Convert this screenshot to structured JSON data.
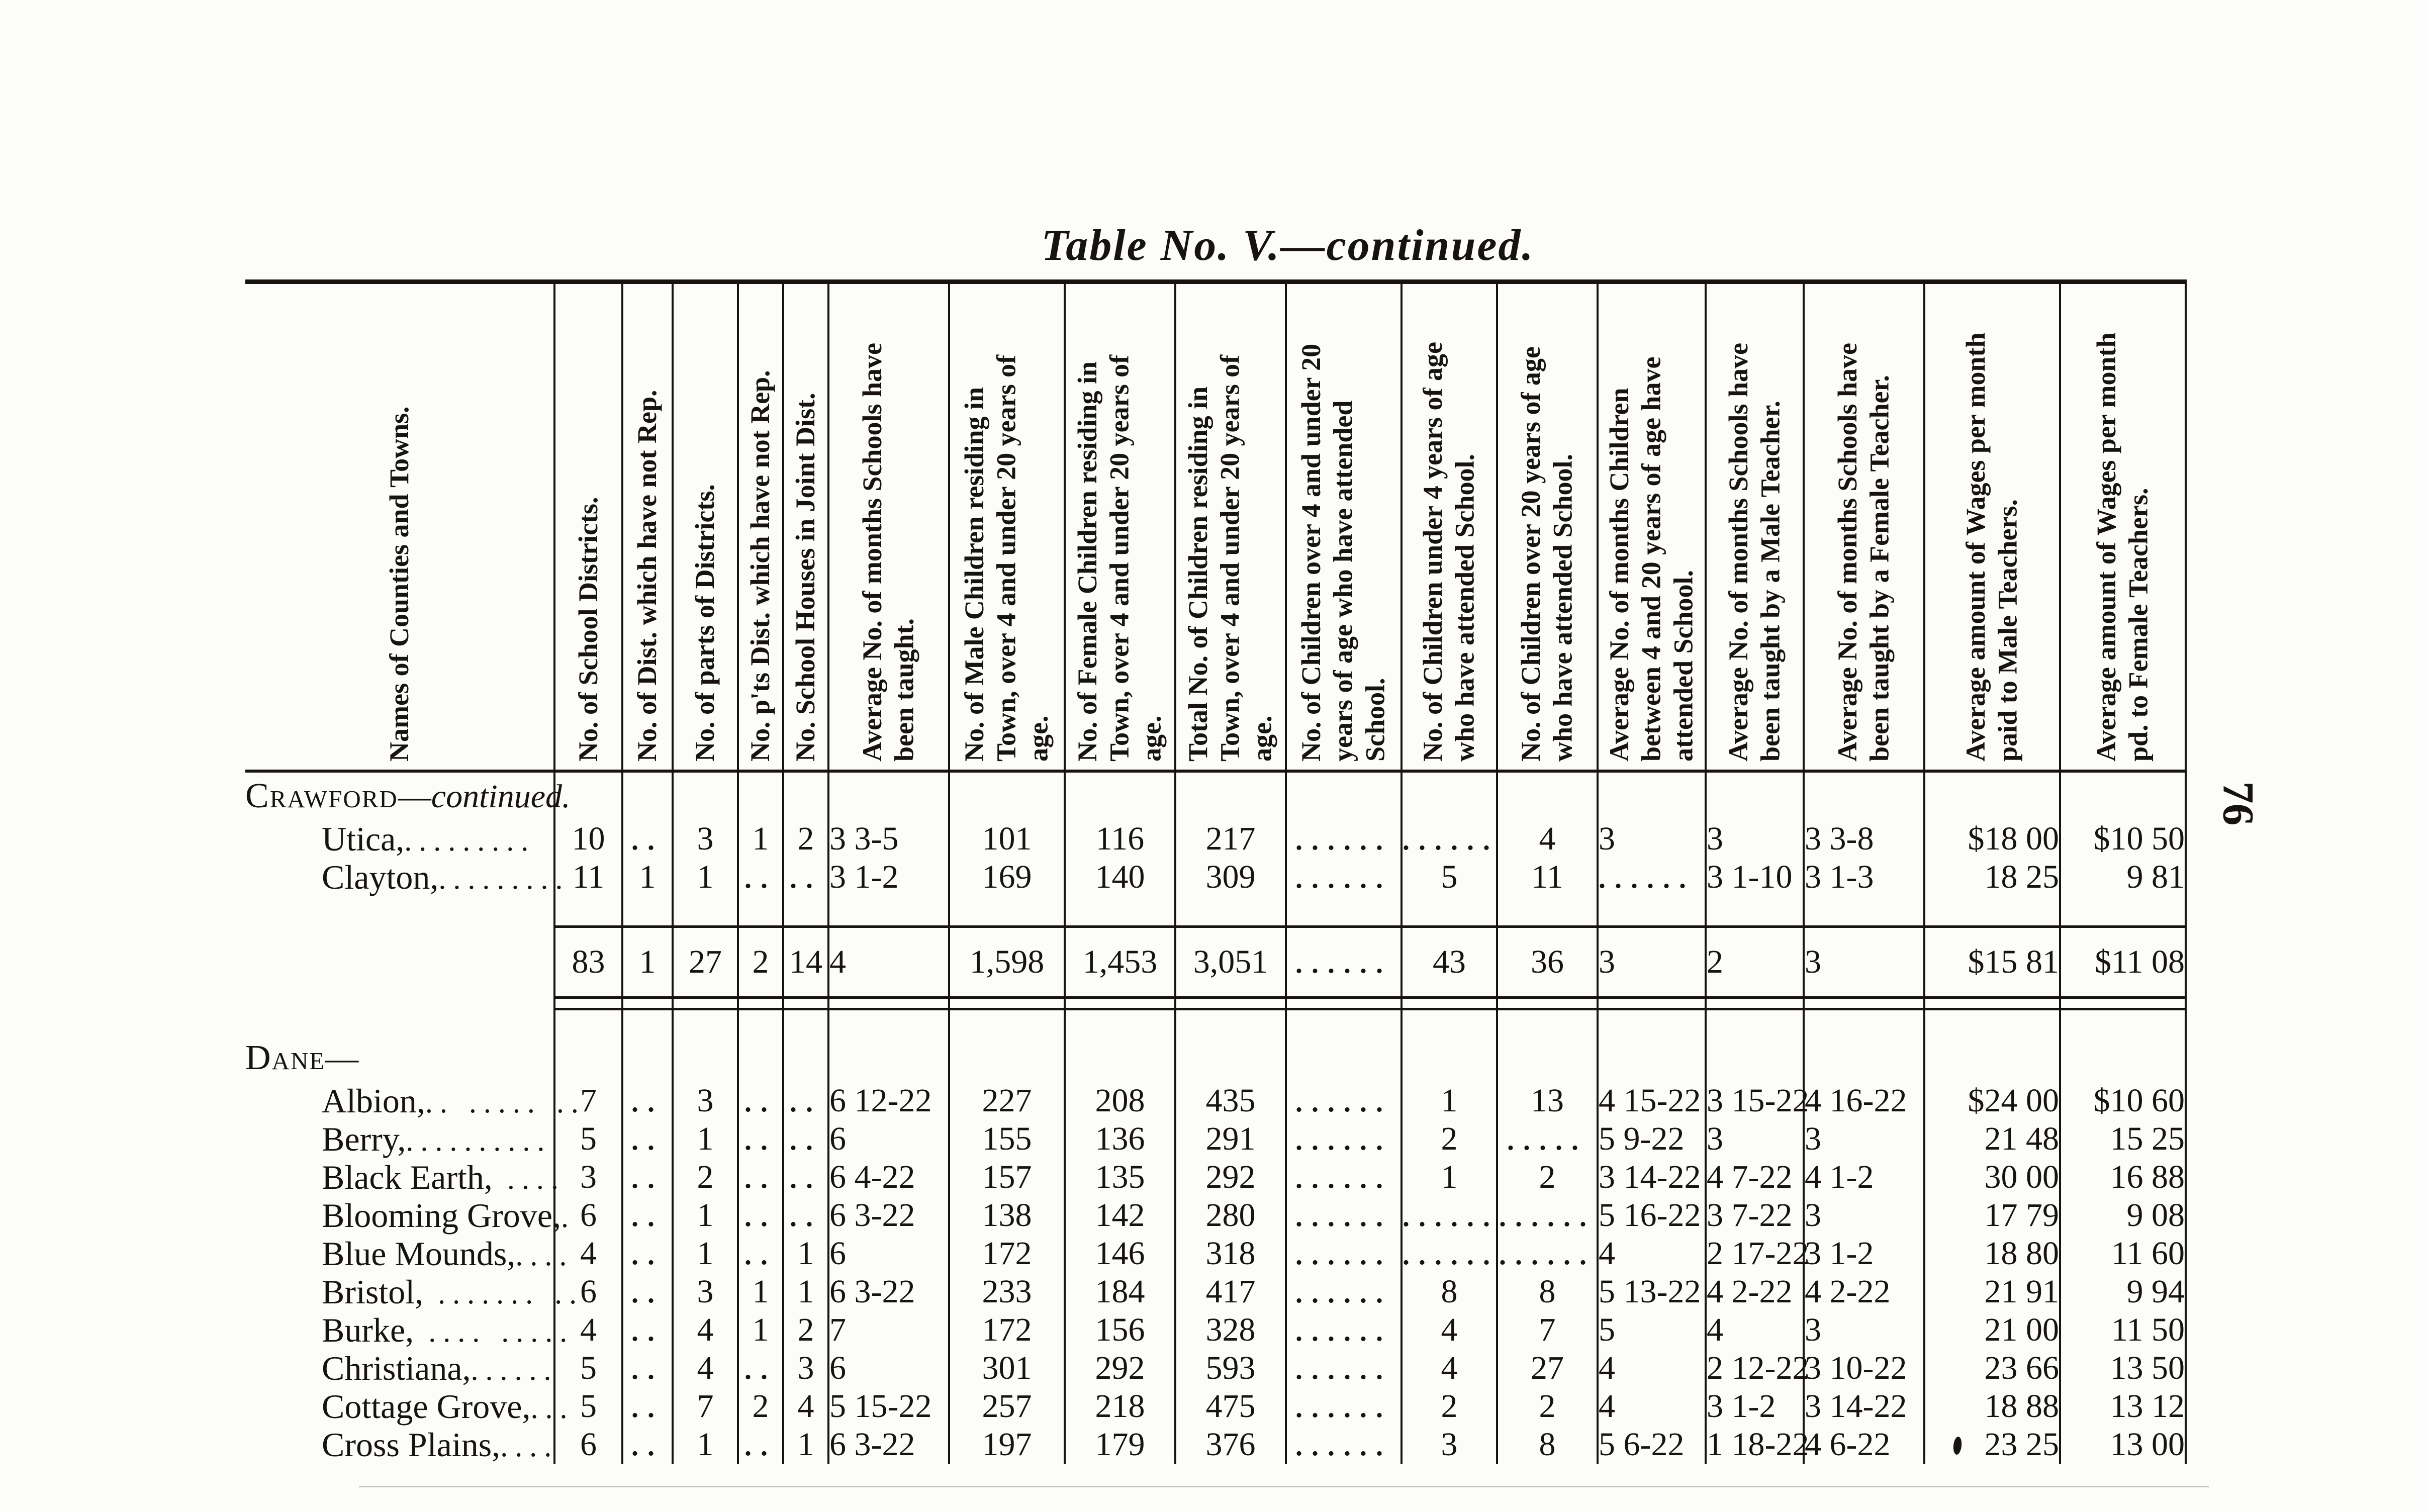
{
  "page": {
    "title": "Table No. V.—continued.",
    "page_number": "76",
    "ink_color": "#17130e",
    "paper_color": "#fcfcfa"
  },
  "table": {
    "columns": [
      {
        "label": "Names of Counties and Towns."
      },
      {
        "label": "No. of School Districts."
      },
      {
        "label": "No. of Dist. which have not Rep."
      },
      {
        "label": "No. of parts of Districts."
      },
      {
        "label": "No. p'ts Dist. which have not Rep."
      },
      {
        "label": "No. School Houses in Joint Dist."
      },
      {
        "label": "Average No. of months Schools have been taught."
      },
      {
        "label": "No. of Male Children residing in Town, over 4 and under 20 years of age."
      },
      {
        "label": "No. of Female Children residing in Town, over 4 and under 20 years of age."
      },
      {
        "label": "Total No. of Children residing in Town, over 4 and under 20 years of age."
      },
      {
        "label": "No. of Children over 4 and under 20 years of age who have attended School."
      },
      {
        "label": "No. of Children under 4 years of age who have attended School."
      },
      {
        "label": "No. of Children over 20 years of age who have attended School."
      },
      {
        "label": "Average No. of months Children between 4 and 20 years of age have attended School."
      },
      {
        "label": "Average No. of months Schools have been taught by a Male Teacher."
      },
      {
        "label": "Average No. of months Schools have been taught by a Female Teacher."
      },
      {
        "label": "Average amount of Wages per month paid to Male Teachers."
      },
      {
        "label": "Average amount of Wages per month pd. to Female Teachers."
      }
    ],
    "sections": [
      {
        "heading": {
          "name": "Crawford",
          "dash": "—",
          "note": "continued."
        },
        "rows": [
          {
            "label": "Utica,",
            "leader": ".........",
            "values": [
              "10",
              "..",
              "3",
              "1",
              "2",
              "3 3-5",
              "101",
              "116",
              "217",
              "......",
              "......",
              "4",
              "3",
              "3",
              "3 3-8",
              "$18 00",
              "$10 50"
            ]
          },
          {
            "label": "Clayton,",
            "leader": ".........",
            "values": [
              "11",
              "1",
              "1",
              "..",
              "..",
              "3 1-2",
              "169",
              "140",
              "309",
              "......",
              "5",
              "11",
              "......",
              "3 1-10",
              "3 1-3",
              "18 25",
              "9 81"
            ]
          }
        ]
      },
      {
        "heading": {
          "name": "Dane",
          "dash": "—",
          "note": ""
        },
        "rows": [
          {
            "label": "Albion,",
            "leader": ".. ..... ..",
            "values": [
              "7",
              "..",
              "3",
              "..",
              "..",
              "6 12-22",
              "227",
              "208",
              "435",
              "......",
              "1",
              "13",
              "4 15-22",
              "3 15-22",
              "4 16-22",
              "$24 00",
              "$10 60"
            ]
          },
          {
            "label": "Berry,",
            "leader": "..........",
            "values": [
              "5",
              "..",
              "1",
              "..",
              "..",
              "6",
              "155",
              "136",
              "291",
              "......",
              "2",
              ".....",
              "5 9-22",
              "3",
              "3",
              "21 48",
              "15 25"
            ]
          },
          {
            "label": "Black Earth,",
            "leader": " ....",
            "values": [
              "3",
              "..",
              "2",
              "..",
              "..",
              "6 4-22",
              "157",
              "135",
              "292",
              "......",
              "1",
              "2",
              "3 14-22",
              "4 7-22",
              "4 1-2",
              "30 00",
              "16 88"
            ]
          },
          {
            "label": "Blooming Grove,",
            "leader": ".",
            "values": [
              "6",
              "..",
              "1",
              "..",
              "..",
              "6 3-22",
              "138",
              "142",
              "280",
              "......",
              "......",
              "......",
              "5 16-22",
              "3 7-22",
              "3",
              "17 79",
              "9 08"
            ]
          },
          {
            "label": "Blue Mounds,",
            "leader": "....",
            "values": [
              "4",
              "..",
              "1",
              "..",
              "1",
              "6",
              "172",
              "146",
              "318",
              "......",
              "......",
              "......",
              "4",
              "2 17-22",
              "3 1-2",
              "18 80",
              "11 60"
            ]
          },
          {
            "label": "Bristol,",
            "leader": " ....... ..",
            "values": [
              "6",
              "..",
              "3",
              "1",
              "1",
              "6 3-22",
              "233",
              "184",
              "417",
              "......",
              "8",
              "8",
              "5 13-22",
              "4 2-22",
              "4 2-22",
              "21 91",
              "9 94"
            ]
          },
          {
            "label": "Burke,",
            "leader": " .... .....",
            "values": [
              "4",
              "..",
              "4",
              "1",
              "2",
              "7",
              "172",
              "156",
              "328",
              "......",
              "4",
              "7",
              "5",
              "4",
              "3",
              "21 00",
              "11 50"
            ]
          },
          {
            "label": "Christiana,",
            "leader": "......",
            "values": [
              "5",
              "..",
              "4",
              "..",
              "3",
              "6",
              "301",
              "292",
              "593",
              "......",
              "4",
              "27",
              "4",
              "2 12-22",
              "3 10-22",
              "23 66",
              "13 50"
            ]
          },
          {
            "label": "Cottage Grove,",
            "leader": "...",
            "values": [
              "5",
              "..",
              "7",
              "2",
              "4",
              "5 15-22",
              "257",
              "218",
              "475",
              "......",
              "2",
              "2",
              "4",
              "3 1-2",
              "3 14-22",
              "18 88",
              "13 12"
            ]
          },
          {
            "label": "Cross Plains,",
            "leader": "....",
            "values": [
              "6",
              "..",
              "1",
              "..",
              "1",
              "6 3-22",
              "197",
              "179",
              "376",
              "......",
              "3",
              "8",
              "5 6-22",
              "1 18-22",
              "4 6-22",
              "23 25",
              "13 00"
            ]
          }
        ]
      }
    ],
    "totals": {
      "values": [
        "83",
        "1",
        "27",
        "2",
        "14",
        "4",
        "1,598",
        "1,453",
        "3,051",
        "......",
        "43",
        "36",
        "3",
        "2",
        "3",
        "$15 81",
        "$11 08"
      ]
    }
  }
}
